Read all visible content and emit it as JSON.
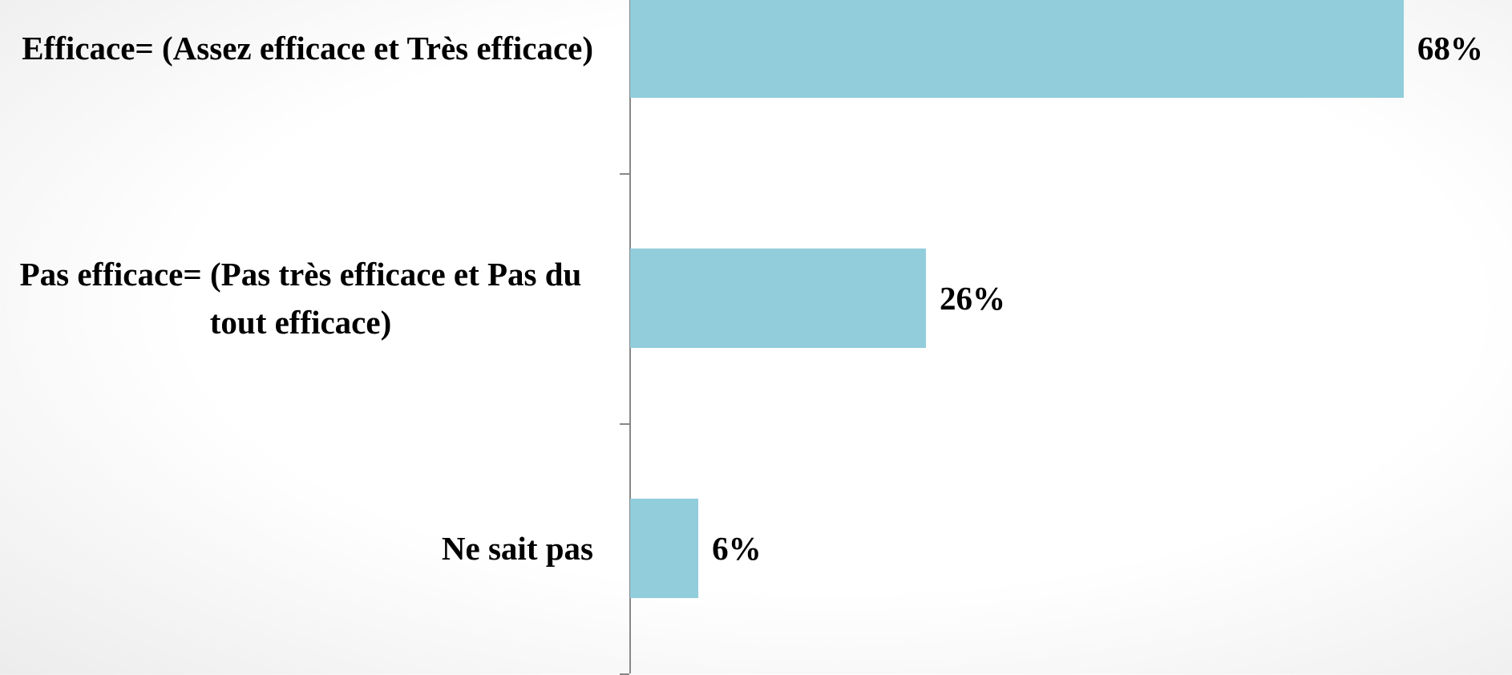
{
  "chart_data": {
    "type": "barh",
    "categories": [
      "Efficace= (Assez efficace et Très efficace)",
      "Pas efficace= (Pas très efficace et Pas du tout efficace)",
      "Ne sait pas"
    ],
    "values": [
      68,
      26,
      6
    ],
    "value_labels": [
      "68%",
      "26%",
      "6%"
    ],
    "color": "#92cddc"
  }
}
